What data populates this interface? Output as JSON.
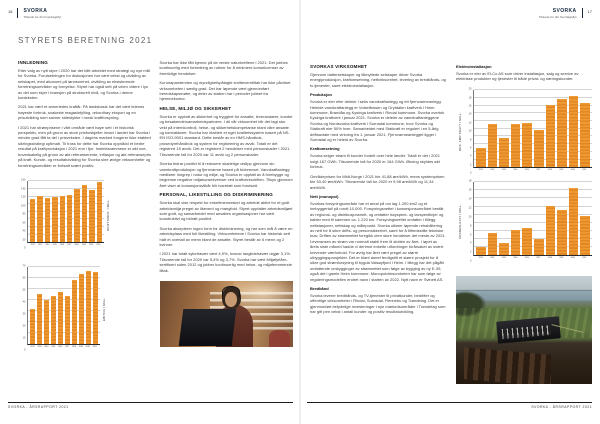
{
  "colors": {
    "accent_orange": "#E78F2B",
    "brand_navy": "#16293E",
    "title_gray": "#5E5E5E"
  },
  "header": {
    "brand": "SVORKA",
    "tagline": "Tilstede for din hverdagsflyt",
    "page_left": "16",
    "page_right": "17"
  },
  "footer": {
    "left": "SVORKA - ÅRSRAPPORT 2021",
    "right": "SVORKA - ÅRSRAPPORT 2021"
  },
  "left_page": {
    "title": "STYRETS BERETNING 2021",
    "col1": {
      "heading": "INNLEDNING",
      "paragraphs": [
        "Etter valg av nytt styre i 2020 har det blitt arbeidet med strategi og nye mål for Svorka. Forutsetningen for diskusjonen har vært vekst og utvikling av selskapet, med økonomi på lønnsomhet, utvikling av eksisterende forretningsområder og fornyelse. Styret har også sett på veien videre i lys av det som skjer i bransjen på strukturelt nivå, og Svorka i denne konteksten.",
        "2021 har vært et annerledes kraftår. På landsbasis har det vært tidenes høyeste forbruk, svakeste magasinfylling, rekordhøy eksport og en prisutvikling som savner sidestykke i norsk kraftforsyning.",
        "I 2021 har strømprisene i vårt område vært høye sett i et historisk perspektiv, men på grunn av store prisforskjeller innad i landet har Svorka i mindre grad fått ta del i prisveksten. I dagens marked fungerer ikke etablert sikringsstrategi optimalt. Til tross for dette har Svorka oppnådd et bedre resultat på kraftproduksjon i 2021 enn i fjor. Inntektsrammene er økt noe, hovedsakelig på grunn av økt referanserente, inflasjon og økt referansepris på kraft. Kunde- og resultatutvikling for Svorka sine øvrige virksomheter og forretningsområder er fortsatt svært positiv."
      ]
    },
    "col2": {
      "intro": [
        "Svorka har ikke fått kjenne på de verste naturkreftene i 2021. Det jobbes kontinuerlig med forbedring av rutiner for å minimere konsekvenser av fremtidige hendelser.",
        "Koronapandemien og myndighetspålagte smitteverntiltak har ikke påvirket virksomheten i særlig grad. Det har løpende vært gjennomført beredskapsmøter, og deler av staben har i perioder jobbet fra hjemmekontor."
      ],
      "hms": {
        "heading": "HELSE, MILJØ OG SIKKERHET",
        "paragraphs": [
          "Svorka er opptatt av sikkerhet og trygghet for ansatte, leverandører, kunder og besøkende/samarbeidspartnere. I all vår virksomhet blir det lagt stor vekt på internkontroll, helse- og sikkerhetskompetanse blant våre ansatte og kontraktører. Svorka har etablert et eget kvalitetssystem basert på NS-EN ISO-9001 standard. Dette består av en HMS-håndbok, prosedyrehåndbok og system for registrering av avvik. Totalt er det registrert 15 avvik. Det er registrert 2 hendelser med personskader i 2021. Tilsvarende tall for 2020 var 11 avvik og 2 personskader.",
          "Svorka bidrar positivt til å redusere skadelige utslipp gjennom sin vannkraftproduksjon og fjernvarme basert på biobrensel. Vannkraftanlegg medfører inngrep i natur og miljø, og Svorka er opptatt av å forebygge og begrense negative miljøkonsekvenser ved kraftverksdriften. Tilsyn gjennom året viser at konsesjonsvilkår blir ivaretatt som forutsatt."
        ]
      },
      "personal": {
        "heading": "PERSONAL, LIKESTILLING OG DISKRIMINERING",
        "paragraphs": [
          "Svorka skal vise respekt for enkeltmennesket og arbeide aktivt for et godt arbeidsmiljø preget av likeverd og mangfold. Styret oppfatter arbeidsmiljøet som godt, og samarbeidet med ansattes organisasjoner har vært konstruktivt og bidratt positivt.",
          "Svorka aksepterer ingen form for diskriminering, og har som mål å være en arbeidsplass med full likestilling. Virksomhetene i Svorka har historisk sett hatt et overtall av menn blant de ansatte. Styret består av 6 menn og 2 kvinner.",
          "I 2021 har totalt sykefravær vært 4,9%, hvorav langtidsfravær utgjør 3,1%. Tilsvarende tall for 2020 var 5,4% og 3,7%. Svorka har vært Miljøfyrtårn-sertifisert siden 2012 og jobber kontinuerlig med helse- og miljøfremmende tiltak."
        ]
      }
    }
  },
  "right_page": {
    "virksomhet": {
      "heading": "SVORKAS VIRKSOMHET",
      "intro": "Gjennom datterselskaper og tilknyttede selskaper driver Svorka energiproduksjon, kraftomsetning, nettvirksomhet, levering av bredbånds- og tv-tjenester, samt elektroinstallasjon."
    },
    "produksjon": {
      "heading": "Produksjon",
      "text": "Svorka er eier eller deleier i seks vannkraftanlegg og ett fjernvarmeanlegg. Heleide vannkraftanlegg er Volsetfossen og Grytdalen kraftverk i Heim kommune, Brandåa og Kysinga kraftverk i Rindal kommune. Svorka overtok Kysinga kraftverk i januar 2021. Svorka er deleier av vannkraftanleggene Svorka og Nordsvorka kraftverk i Surnadal kommune, hvor Svorka og Statkraft eier 50% hver. Samarbeidet med Statkraft er regulert i en 5-årig driftsavtale med virkning fra 1. januar 2021. Fjernvarmeanlegget ligger i Surnadal og er heleid av Svorka."
    },
    "kraftomsetning": {
      "heading": "Kraftomsetning",
      "paragraphs": [
        "Svorka selger strøm til kunder fordelt over hele landet. Totalt er det i 2021 solgt 167 GWh. Tilsvarende tall for 2020 er 164 GWh. Økning skyldes økt forbruk.",
        "Områdeprisen for Midt-Norge i 2021 ble 41,88 øre/kWh, mens systemprisen ble 53,40 øre/kWh. Tilsvarende tall for 2020 er 9,98 øre/kWh og 11,34 øre/kWh."
      ]
    },
    "nett": {
      "heading": "Nett (monopol)",
      "text": "Svorkas forsyningsområde har et areal på om lag 1.200 km2 og et innbyggertall på rundt 10.000. Forsyningsnettet i konsesjonsområdet består av regional- og distribusjonsnett, og omfatter høyspent- og lavspentlinjer og kabler med til sammen ca. 1.220 km. Forsyningsnettet omfatter i tillegg nettstasjoner, nettskap og målepunkt. Svorka utfører løpende rehabilitering av nett for å sikre drifts- og personsikkerhet, samt for å tilfredsstille tekniske krav. Driften av strømnettet foregikk uten store hendelser det meste av 2021. Leveransen av strøm var normalt stabil frem til slutten av året. I løpet av årets siste måned hadde vi derimot enkelte utfordringer forårsaket av svært krevende værforhold. For øvrig har året vært preget av større utbyggingsprosjekter. Det er blant annet ferdigstilt et større prosjekt for å sikre god strømforsyning til bygda Valsøyfjord i Heim. I tillegg har det pågått omfattende ombygginger av strømnettet som følge av bygging av ny E-39, også det i gamle Heim kommune. Monopolvirksomheten har som følge av reguleringsmodellen endret navn i starten av 2022. Nytt navn er Svinett AS."
    },
    "bredband": {
      "heading": "Bredbånd",
      "text": "Svorka leverer bredbånds- og TV-tjenester til privatkunder, bedrifter og offentlige virksomheter i Rindal, Surnadal, Rennebu og Trøndelag. Det er gjennomført betydelige investeringer i nye markedsområder i Trøndelag som har gitt pen vekst i antall kunder og positiv resultatutvikling."
    },
    "elektro": {
      "heading": "Elektroinstallasjon",
      "text": "Svorka er eier av El-Co AS som driver installasjon, salg og service av elektriske produkter og tjenester til både privat- og næringskunder."
    }
  },
  "chart_data": [
    {
      "type": "bar",
      "title": "",
      "ylabel": "DRIFTSINNT. I MILL.",
      "label_side": "right",
      "categories": [
        "2012",
        "2013",
        "2014",
        "2015",
        "2016",
        "2017",
        "2018",
        "2019",
        "2020",
        "2021"
      ],
      "values": [
        112,
        120,
        114,
        117,
        121,
        123,
        140,
        150,
        136,
        158
      ],
      "ylim": [
        0,
        160
      ],
      "ytick": 20,
      "grid": true,
      "bar_color": "#E78F2B"
    },
    {
      "type": "bar",
      "title": "",
      "ylabel": "EBITDA I MILL.",
      "label_side": "right",
      "categories": [
        "2012",
        "2013",
        "2014",
        "2015",
        "2016",
        "2017",
        "2018",
        "2019",
        "2020",
        "2021"
      ],
      "values": [
        32,
        45,
        40,
        44,
        47,
        44,
        58,
        64,
        66,
        65
      ],
      "ylim": [
        0,
        70
      ],
      "ytick": 10,
      "grid": true,
      "bar_color": "#E78F2B"
    },
    {
      "type": "bar",
      "title": "",
      "ylabel": "RES. FØR SKATT I MILL.",
      "label_side": "left",
      "categories": [
        "2012",
        "2013",
        "2014",
        "2015",
        "2016",
        "2017",
        "2018",
        "2019",
        "2020",
        "2021"
      ],
      "values": [
        5,
        11,
        7.5,
        11,
        11.5,
        9.5,
        16,
        17.5,
        18.5,
        16.5
      ],
      "ylim": [
        0,
        20
      ],
      "ytick": 2,
      "grid": true,
      "bar_color": "#E78F2B"
    },
    {
      "type": "bar",
      "title": "",
      "ylabel": "ÅRSRESULTAT I MILL.",
      "label_side": "left",
      "categories": [
        "2012",
        "2013",
        "2014",
        "2015",
        "2016",
        "2017",
        "2018",
        "2019",
        "2020",
        "2021"
      ],
      "values": [
        2,
        5.5,
        3,
        6,
        6.5,
        4,
        12,
        11,
        16.5,
        9.5
      ],
      "ylim": [
        0,
        18
      ],
      "ytick": 2,
      "grid": true,
      "bar_color": "#E78F2B"
    }
  ],
  "photos": [
    {
      "name": "customer-service-photo",
      "description": "Person med headset foran laptop"
    },
    {
      "name": "field-equipment-photo",
      "description": "Måleutstyr på trekasser ved fjorden"
    }
  ]
}
